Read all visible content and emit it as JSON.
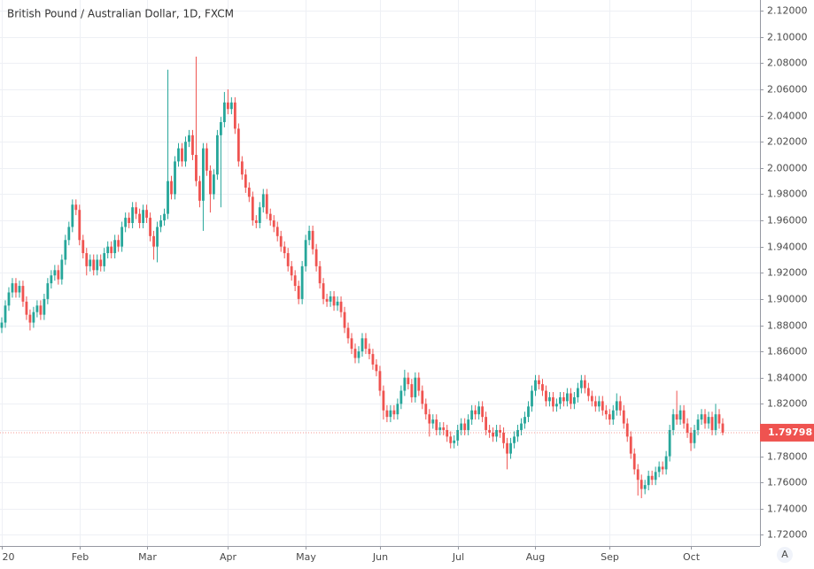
{
  "chart_data": {
    "type": "candlestick",
    "title": "British Pound / Australian Dollar, 1D, FXCM",
    "up_color": "#26a69a",
    "down_color": "#ef5350",
    "grid": true,
    "ylim": [
      1.7115,
      2.1282
    ],
    "yticks": [
      {
        "value": 1.72,
        "label": "1.72000"
      },
      {
        "value": 1.74,
        "label": "1.74000"
      },
      {
        "value": 1.76,
        "label": "1.76000"
      },
      {
        "value": 1.78,
        "label": "1.78000"
      },
      {
        "value": 1.8,
        "label": "1.80000"
      },
      {
        "value": 1.82,
        "label": "1.82000"
      },
      {
        "value": 1.84,
        "label": "1.84000"
      },
      {
        "value": 1.86,
        "label": "1.86000"
      },
      {
        "value": 1.88,
        "label": "1.88000"
      },
      {
        "value": 1.9,
        "label": "1.90000"
      },
      {
        "value": 1.92,
        "label": "1.92000"
      },
      {
        "value": 1.94,
        "label": "1.94000"
      },
      {
        "value": 1.96,
        "label": "1.96000"
      },
      {
        "value": 1.98,
        "label": "1.98000"
      },
      {
        "value": 2,
        "label": "2.00000"
      },
      {
        "value": 2.02,
        "label": "2.02000"
      },
      {
        "value": 2.04,
        "label": "2.04000"
      },
      {
        "value": 2.06,
        "label": "2.06000"
      },
      {
        "value": 2.08,
        "label": "2.08000"
      },
      {
        "value": 2.1,
        "label": "2.10000"
      },
      {
        "value": 2.12,
        "label": "2.12000"
      }
    ],
    "xticks": [
      {
        "value": 0,
        "label": "20"
      },
      {
        "value": 22,
        "label": "Feb"
      },
      {
        "value": 41,
        "label": "Mar"
      },
      {
        "value": 64,
        "label": "Apr"
      },
      {
        "value": 86,
        "label": "May"
      },
      {
        "value": 107,
        "label": "Jun"
      },
      {
        "value": 129,
        "label": "Jul"
      },
      {
        "value": 151,
        "label": "Aug"
      },
      {
        "value": 172,
        "label": "Sep"
      },
      {
        "value": 195,
        "label": "Oct"
      }
    ],
    "last_price": 1.79798,
    "auto_button": "A",
    "ohlc": [
      [
        1.878,
        1.886,
        1.874,
        1.882
      ],
      [
        1.882,
        1.899,
        1.878,
        1.895
      ],
      [
        1.895,
        1.909,
        1.891,
        1.905
      ],
      [
        1.905,
        1.916,
        1.901,
        1.912
      ],
      [
        1.912,
        1.916,
        1.901,
        1.905
      ],
      [
        1.905,
        1.914,
        1.901,
        1.91
      ],
      [
        1.91,
        1.914,
        1.894,
        1.898
      ],
      [
        1.898,
        1.902,
        1.884,
        1.888
      ],
      [
        1.888,
        1.892,
        1.876,
        1.882
      ],
      [
        1.882,
        1.894,
        1.878,
        1.89
      ],
      [
        1.89,
        1.899,
        1.886,
        1.895
      ],
      [
        1.895,
        1.899,
        1.884,
        1.888
      ],
      [
        1.888,
        1.904,
        1.884,
        1.9
      ],
      [
        1.9,
        1.916,
        1.896,
        1.912
      ],
      [
        1.912,
        1.922,
        1.908,
        1.918
      ],
      [
        1.918,
        1.926,
        1.914,
        1.922
      ],
      [
        1.922,
        1.926,
        1.911,
        1.915
      ],
      [
        1.915,
        1.934,
        1.911,
        1.93
      ],
      [
        1.93,
        1.949,
        1.926,
        1.945
      ],
      [
        1.945,
        1.959,
        1.941,
        1.955
      ],
      [
        1.955,
        1.976,
        1.951,
        1.972
      ],
      [
        1.972,
        1.976,
        1.964,
        1.968
      ],
      [
        1.968,
        1.972,
        1.941,
        1.945
      ],
      [
        1.945,
        1.949,
        1.931,
        1.935
      ],
      [
        1.935,
        1.939,
        1.918,
        1.925
      ],
      [
        1.925,
        1.934,
        1.921,
        1.93
      ],
      [
        1.93,
        1.934,
        1.918,
        1.922
      ],
      [
        1.922,
        1.934,
        1.918,
        1.93
      ],
      [
        1.93,
        1.934,
        1.921,
        1.925
      ],
      [
        1.925,
        1.939,
        1.921,
        1.935
      ],
      [
        1.935,
        1.944,
        1.931,
        1.94
      ],
      [
        1.94,
        1.944,
        1.931,
        1.935
      ],
      [
        1.935,
        1.949,
        1.931,
        1.945
      ],
      [
        1.945,
        1.949,
        1.936,
        1.94
      ],
      [
        1.94,
        1.959,
        1.936,
        1.955
      ],
      [
        1.955,
        1.966,
        1.951,
        1.962
      ],
      [
        1.962,
        1.966,
        1.954,
        1.958
      ],
      [
        1.958,
        1.974,
        1.954,
        1.97
      ],
      [
        1.97,
        1.974,
        1.961,
        1.965
      ],
      [
        1.965,
        1.969,
        1.954,
        1.958
      ],
      [
        1.958,
        1.972,
        1.954,
        1.968
      ],
      [
        1.968,
        1.972,
        1.958,
        1.962
      ],
      [
        1.962,
        1.966,
        1.944,
        1.948
      ],
      [
        1.948,
        1.952,
        1.93,
        1.94
      ],
      [
        1.94,
        1.959,
        1.928,
        1.955
      ],
      [
        1.955,
        1.964,
        1.951,
        1.96
      ],
      [
        1.96,
        1.969,
        1.956,
        1.965
      ],
      [
        1.965,
        2.075,
        1.961,
        1.99
      ],
      [
        1.99,
        1.994,
        1.976,
        1.98
      ],
      [
        1.98,
        2.009,
        1.976,
        2.005
      ],
      [
        2.005,
        2.019,
        2.001,
        2.015
      ],
      [
        2.015,
        2.019,
        2.001,
        2.005
      ],
      [
        2.005,
        2.024,
        2.001,
        2.02
      ],
      [
        2.02,
        2.029,
        2.016,
        2.025
      ],
      [
        2.025,
        2.029,
        2.006,
        2.01
      ],
      [
        2.01,
        2.085,
        1.986,
        1.99
      ],
      [
        1.99,
        1.994,
        1.97,
        1.975
      ],
      [
        1.975,
        2.019,
        1.952,
        2.015
      ],
      [
        2.015,
        2.019,
        1.994,
        1.998
      ],
      [
        1.998,
        2.002,
        1.966,
        1.98
      ],
      [
        1.98,
        1.999,
        1.976,
        1.995
      ],
      [
        1.995,
        2.029,
        1.991,
        2.025
      ],
      [
        2.025,
        2.039,
        1.97,
        2.035
      ],
      [
        2.035,
        2.058,
        2.031,
        2.05
      ],
      [
        2.05,
        2.06,
        2.041,
        2.045
      ],
      [
        2.045,
        2.054,
        2.041,
        2.05
      ],
      [
        2.05,
        2.054,
        2.026,
        2.03
      ],
      [
        2.03,
        2.034,
        2.001,
        2.005
      ],
      [
        2.005,
        2.009,
        1.991,
        1.995
      ],
      [
        1.995,
        1.999,
        1.981,
        1.985
      ],
      [
        1.985,
        1.989,
        1.974,
        1.978
      ],
      [
        1.978,
        1.982,
        1.956,
        1.96
      ],
      [
        1.96,
        1.964,
        1.954,
        1.958
      ],
      [
        1.958,
        1.974,
        1.954,
        1.97
      ],
      [
        1.97,
        1.984,
        1.966,
        1.98
      ],
      [
        1.98,
        1.984,
        1.961,
        1.965
      ],
      [
        1.965,
        1.969,
        1.956,
        1.96
      ],
      [
        1.96,
        1.964,
        1.951,
        1.955
      ],
      [
        1.955,
        1.959,
        1.944,
        1.948
      ],
      [
        1.948,
        1.952,
        1.936,
        1.94
      ],
      [
        1.94,
        1.944,
        1.931,
        1.935
      ],
      [
        1.935,
        1.939,
        1.921,
        1.925
      ],
      [
        1.925,
        1.929,
        1.914,
        1.918
      ],
      [
        1.918,
        1.922,
        1.906,
        1.91
      ],
      [
        1.91,
        1.914,
        1.896,
        1.9
      ],
      [
        1.9,
        1.929,
        1.896,
        1.925
      ],
      [
        1.925,
        1.949,
        1.921,
        1.945
      ],
      [
        1.945,
        1.956,
        1.941,
        1.952
      ],
      [
        1.952,
        1.956,
        1.934,
        1.938
      ],
      [
        1.938,
        1.942,
        1.921,
        1.925
      ],
      [
        1.925,
        1.929,
        1.908,
        1.912
      ],
      [
        1.912,
        1.916,
        1.896,
        1.9
      ],
      [
        1.9,
        1.904,
        1.894,
        1.898
      ],
      [
        1.898,
        1.906,
        1.894,
        1.902
      ],
      [
        1.902,
        1.906,
        1.891,
        1.895
      ],
      [
        1.895,
        1.902,
        1.891,
        1.898
      ],
      [
        1.898,
        1.902,
        1.886,
        1.89
      ],
      [
        1.89,
        1.894,
        1.874,
        1.878
      ],
      [
        1.878,
        1.882,
        1.866,
        1.87
      ],
      [
        1.87,
        1.874,
        1.858,
        1.862
      ],
      [
        1.862,
        1.866,
        1.851,
        1.855
      ],
      [
        1.855,
        1.864,
        1.851,
        1.86
      ],
      [
        1.86,
        1.874,
        1.856,
        1.87
      ],
      [
        1.87,
        1.874,
        1.858,
        1.862
      ],
      [
        1.862,
        1.866,
        1.854,
        1.858
      ],
      [
        1.858,
        1.862,
        1.846,
        1.85
      ],
      [
        1.85,
        1.854,
        1.841,
        1.845
      ],
      [
        1.845,
        1.849,
        1.826,
        1.83
      ],
      [
        1.83,
        1.834,
        1.808,
        1.815
      ],
      [
        1.815,
        1.819,
        1.806,
        1.81
      ],
      [
        1.81,
        1.819,
        1.806,
        1.815
      ],
      [
        1.815,
        1.819,
        1.808,
        1.812
      ],
      [
        1.812,
        1.824,
        1.808,
        1.82
      ],
      [
        1.82,
        1.834,
        1.816,
        1.83
      ],
      [
        1.83,
        1.846,
        1.826,
        1.84
      ],
      [
        1.84,
        1.844,
        1.831,
        1.835
      ],
      [
        1.835,
        1.839,
        1.821,
        1.825
      ],
      [
        1.825,
        1.844,
        1.821,
        1.84
      ],
      [
        1.84,
        1.844,
        1.826,
        1.83
      ],
      [
        1.83,
        1.834,
        1.816,
        1.82
      ],
      [
        1.82,
        1.824,
        1.808,
        1.812
      ],
      [
        1.812,
        1.816,
        1.795,
        1.805
      ],
      [
        1.805,
        1.812,
        1.801,
        1.808
      ],
      [
        1.808,
        1.812,
        1.796,
        1.8
      ],
      [
        1.8,
        1.806,
        1.796,
        1.802
      ],
      [
        1.802,
        1.806,
        1.796,
        1.8
      ],
      [
        1.8,
        1.804,
        1.791,
        1.795
      ],
      [
        1.795,
        1.799,
        1.786,
        1.79
      ],
      [
        1.79,
        1.796,
        1.786,
        1.792
      ],
      [
        1.792,
        1.804,
        1.788,
        1.8
      ],
      [
        1.8,
        1.809,
        1.796,
        1.805
      ],
      [
        1.805,
        1.809,
        1.796,
        1.8
      ],
      [
        1.8,
        1.812,
        1.796,
        1.808
      ],
      [
        1.808,
        1.819,
        1.804,
        1.815
      ],
      [
        1.815,
        1.819,
        1.808,
        1.812
      ],
      [
        1.812,
        1.822,
        1.808,
        1.818
      ],
      [
        1.818,
        1.822,
        1.806,
        1.81
      ],
      [
        1.81,
        1.814,
        1.796,
        1.8
      ],
      [
        1.8,
        1.804,
        1.794,
        1.798
      ],
      [
        1.798,
        1.802,
        1.791,
        1.795
      ],
      [
        1.795,
        1.804,
        1.791,
        1.8
      ],
      [
        1.8,
        1.804,
        1.794,
        1.798
      ],
      [
        1.798,
        1.802,
        1.786,
        1.79
      ],
      [
        1.79,
        1.794,
        1.77,
        1.782
      ],
      [
        1.782,
        1.794,
        1.778,
        1.79
      ],
      [
        1.79,
        1.799,
        1.786,
        1.795
      ],
      [
        1.795,
        1.804,
        1.791,
        1.8
      ],
      [
        1.8,
        1.809,
        1.796,
        1.805
      ],
      [
        1.805,
        1.814,
        1.801,
        1.81
      ],
      [
        1.81,
        1.822,
        1.806,
        1.818
      ],
      [
        1.818,
        1.834,
        1.814,
        1.83
      ],
      [
        1.83,
        1.842,
        1.826,
        1.838
      ],
      [
        1.838,
        1.842,
        1.831,
        1.835
      ],
      [
        1.835,
        1.839,
        1.826,
        1.83
      ],
      [
        1.83,
        1.834,
        1.818,
        1.822
      ],
      [
        1.822,
        1.829,
        1.818,
        1.825
      ],
      [
        1.825,
        1.829,
        1.814,
        1.818
      ],
      [
        1.818,
        1.824,
        1.814,
        1.82
      ],
      [
        1.82,
        1.829,
        1.816,
        1.825
      ],
      [
        1.825,
        1.829,
        1.818,
        1.822
      ],
      [
        1.822,
        1.832,
        1.818,
        1.828
      ],
      [
        1.828,
        1.832,
        1.816,
        1.82
      ],
      [
        1.82,
        1.829,
        1.816,
        1.825
      ],
      [
        1.825,
        1.836,
        1.821,
        1.832
      ],
      [
        1.832,
        1.842,
        1.828,
        1.838
      ],
      [
        1.838,
        1.842,
        1.828,
        1.832
      ],
      [
        1.832,
        1.836,
        1.822,
        1.826
      ],
      [
        1.826,
        1.83,
        1.818,
        1.822
      ],
      [
        1.822,
        1.826,
        1.814,
        1.818
      ],
      [
        1.818,
        1.826,
        1.814,
        1.822
      ],
      [
        1.822,
        1.826,
        1.811,
        1.815
      ],
      [
        1.815,
        1.819,
        1.808,
        1.812
      ],
      [
        1.812,
        1.816,
        1.804,
        1.808
      ],
      [
        1.808,
        1.819,
        1.804,
        1.815
      ],
      [
        1.815,
        1.828,
        1.811,
        1.822
      ],
      [
        1.822,
        1.826,
        1.811,
        1.815
      ],
      [
        1.815,
        1.819,
        1.801,
        1.805
      ],
      [
        1.805,
        1.809,
        1.791,
        1.795
      ],
      [
        1.795,
        1.799,
        1.778,
        1.782
      ],
      [
        1.782,
        1.786,
        1.766,
        1.77
      ],
      [
        1.77,
        1.774,
        1.75,
        1.762
      ],
      [
        1.762,
        1.766,
        1.748,
        1.755
      ],
      [
        1.755,
        1.762,
        1.751,
        1.758
      ],
      [
        1.758,
        1.769,
        1.754,
        1.765
      ],
      [
        1.765,
        1.769,
        1.758,
        1.762
      ],
      [
        1.762,
        1.772,
        1.758,
        1.768
      ],
      [
        1.768,
        1.776,
        1.764,
        1.772
      ],
      [
        1.772,
        1.776,
        1.766,
        1.77
      ],
      [
        1.77,
        1.784,
        1.766,
        1.78
      ],
      [
        1.78,
        1.804,
        1.776,
        1.8
      ],
      [
        1.8,
        1.816,
        1.796,
        1.812
      ],
      [
        1.812,
        1.83,
        1.804,
        1.808
      ],
      [
        1.808,
        1.819,
        1.804,
        1.815
      ],
      [
        1.815,
        1.819,
        1.801,
        1.805
      ],
      [
        1.805,
        1.809,
        1.794,
        1.798
      ],
      [
        1.798,
        1.802,
        1.784,
        1.79
      ],
      [
        1.79,
        1.804,
        1.786,
        1.8
      ],
      [
        1.8,
        1.812,
        1.796,
        1.808
      ],
      [
        1.808,
        1.816,
        1.804,
        1.812
      ],
      [
        1.812,
        1.816,
        1.801,
        1.805
      ],
      [
        1.805,
        1.814,
        1.801,
        1.81
      ],
      [
        1.81,
        1.814,
        1.796,
        1.8
      ],
      [
        1.8,
        1.82,
        1.796,
        1.812
      ],
      [
        1.812,
        1.816,
        1.801,
        1.805
      ],
      [
        1.805,
        1.809,
        1.796,
        1.79798
      ]
    ]
  }
}
